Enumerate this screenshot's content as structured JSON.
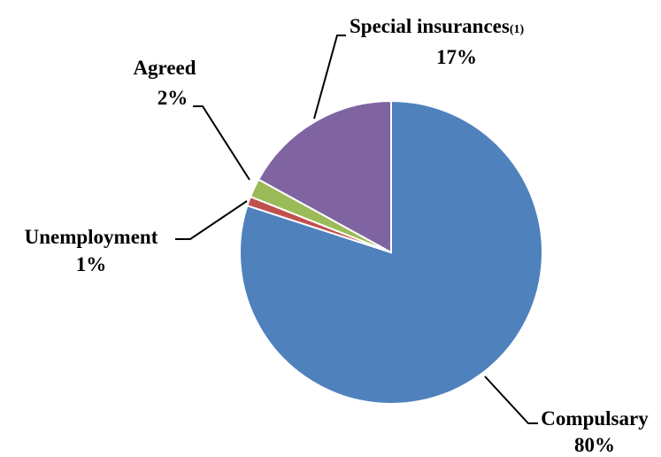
{
  "chart_data": {
    "type": "pie",
    "title": "",
    "slices": [
      {
        "label": "Compulsary",
        "value": 80,
        "percent_label": "80%",
        "color": "#4f81bd"
      },
      {
        "label": "Unemployment",
        "value": 1,
        "percent_label": "1%",
        "color": "#c0504d"
      },
      {
        "label": "Agreed",
        "value": 2,
        "percent_label": "2%",
        "color": "#9bbb59"
      },
      {
        "label": "Special insurances",
        "label_suffix": "(1)",
        "value": 17,
        "percent_label": "17%",
        "color": "#8064a2"
      }
    ],
    "legend": "none",
    "labels": "outside with leader lines"
  }
}
